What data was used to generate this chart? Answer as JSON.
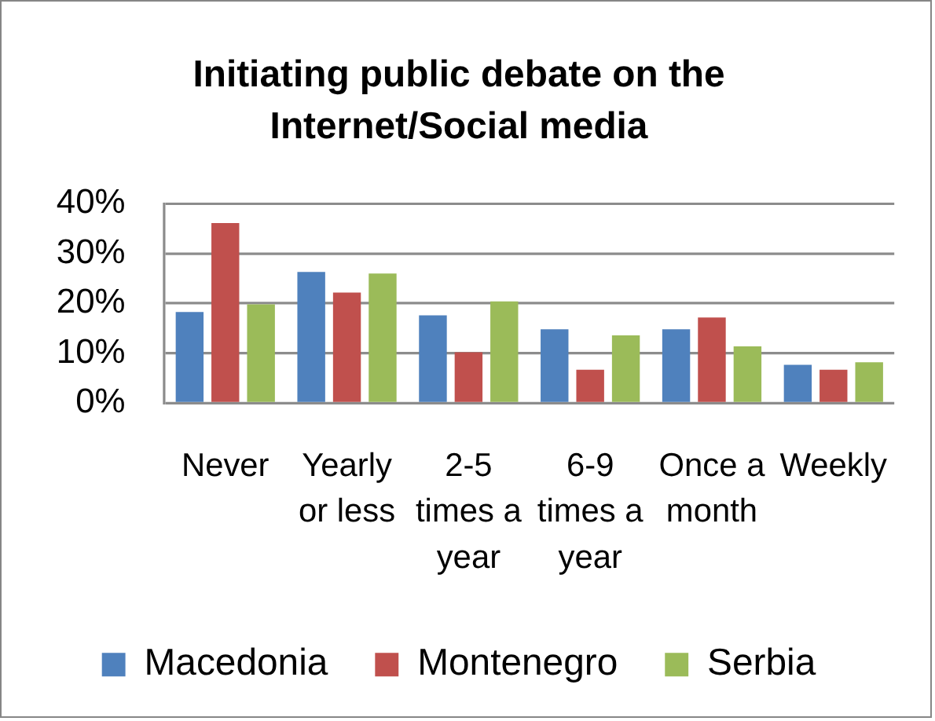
{
  "chart_data": {
    "type": "bar",
    "title": "Initiating public debate on the Internet/Social media",
    "categories": [
      "Never",
      "Yearly or less",
      "2-5 times a year",
      "6-9 times a year",
      "Once a month",
      "Weekly"
    ],
    "series": [
      {
        "name": "Macedonia",
        "color": "#4f81bd",
        "values": [
          18.3,
          26.3,
          17.6,
          14.8,
          14.8,
          7.7
        ]
      },
      {
        "name": "Montenegro",
        "color": "#c0504d",
        "values": [
          36.1,
          22.2,
          10.2,
          6.7,
          17.2,
          6.7
        ]
      },
      {
        "name": "Serbia",
        "color": "#9bbb59",
        "values": [
          19.8,
          26.0,
          20.4,
          13.6,
          11.4,
          8.2
        ]
      }
    ],
    "ylim": [
      0,
      40
    ],
    "yticks": [
      {
        "value": 0,
        "label": "0%"
      },
      {
        "value": 10,
        "label": "10%"
      },
      {
        "value": 20,
        "label": "20%"
      },
      {
        "value": 30,
        "label": "30%"
      },
      {
        "value": 40,
        "label": "40%"
      }
    ],
    "grid": "y",
    "legend": "bottom"
  }
}
